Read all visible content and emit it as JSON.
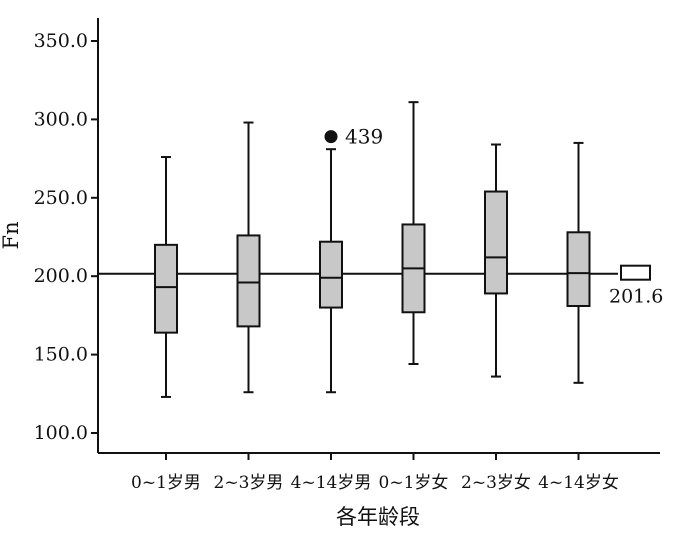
{
  "chart_data": {
    "type": "box",
    "xlabel": "各年龄段",
    "ylabel": "Fn",
    "ylim": [
      88,
      355
    ],
    "yticks": [
      "350.0",
      "300.0",
      "250.0",
      "200.0",
      "150.0",
      "100.0"
    ],
    "ytick_values": [
      350,
      300,
      250,
      200,
      150,
      100
    ],
    "categories": [
      "0~1岁男",
      "2~3岁男",
      "4~14岁男",
      "0~1岁女",
      "2~3岁女",
      "4~14岁女"
    ],
    "boxes": [
      {
        "min": 123,
        "q1": 164,
        "median": 193,
        "q3": 220,
        "max": 276
      },
      {
        "min": 126,
        "q1": 168,
        "median": 196,
        "q3": 226,
        "max": 298
      },
      {
        "min": 126,
        "q1": 180,
        "median": 199,
        "q3": 222,
        "max": 281
      },
      {
        "min": 144,
        "q1": 177,
        "median": 205,
        "q3": 233,
        "max": 311
      },
      {
        "min": 136,
        "q1": 189,
        "median": 212,
        "q3": 254,
        "max": 284
      },
      {
        "min": 132,
        "q1": 181,
        "median": 202,
        "q3": 228,
        "max": 285
      }
    ],
    "outliers": [
      {
        "category": "4~14岁男",
        "value": 289,
        "label": "439"
      }
    ],
    "reference_line": {
      "value": 201.6,
      "label": "201.6"
    },
    "colors": {
      "box_fill": "#c8c8c8",
      "stroke": "#111111"
    }
  }
}
